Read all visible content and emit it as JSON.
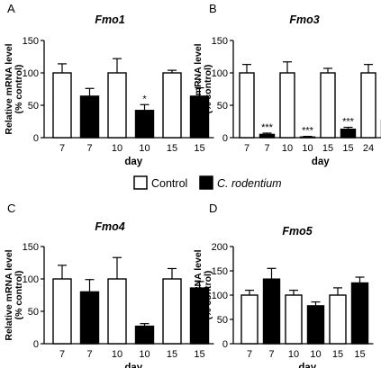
{
  "legend": {
    "control": "Control",
    "infected": "C. rodentium"
  },
  "chart_data": [
    {
      "panel": "A",
      "type": "bar",
      "title": "Fmo1",
      "xlabel": "day",
      "ylabel": "Relative mRNA level",
      "ylabel2": "(% control)",
      "ylim": [
        0,
        150
      ],
      "yticks": [
        0,
        50,
        100,
        150
      ],
      "grid": false,
      "categories": [
        "7",
        "7",
        "10",
        "10",
        "15",
        "15"
      ],
      "groups": [
        "Control",
        "C. rodentium",
        "Control",
        "C. rodentium",
        "Control",
        "C. rodentium"
      ],
      "values": [
        100,
        64,
        100,
        42,
        100,
        64
      ],
      "errors": [
        14,
        12,
        22,
        9,
        4,
        13
      ],
      "annotations": [
        "",
        "",
        "",
        "*",
        "",
        "*"
      ]
    },
    {
      "panel": "B",
      "type": "bar",
      "title": "Fmo3",
      "xlabel": "day",
      "ylabel": "Relative mRNA level",
      "ylabel2": "(% control)",
      "ylim": [
        0,
        150
      ],
      "yticks": [
        0,
        50,
        100,
        150
      ],
      "grid": false,
      "categories": [
        "7",
        "7",
        "10",
        "10",
        "15",
        "15",
        "24",
        "24"
      ],
      "groups": [
        "Control",
        "C. rodentium",
        "Control",
        "C. rodentium",
        "Control",
        "C. rodentium",
        "Control",
        "C. rodentium"
      ],
      "values": [
        100,
        5,
        100,
        1,
        100,
        13,
        100,
        27
      ],
      "errors": [
        13,
        2,
        17,
        1,
        7,
        3,
        13,
        7
      ],
      "annotations": [
        "",
        "***",
        "",
        "***",
        "",
        "***",
        "",
        "***"
      ]
    },
    {
      "panel": "C",
      "type": "bar",
      "title": "Fmo4",
      "xlabel": "day",
      "ylabel": "Relative mRNA level",
      "ylabel2": "(% control)",
      "ylim": [
        0,
        150
      ],
      "yticks": [
        0,
        50,
        100,
        150
      ],
      "grid": false,
      "categories": [
        "7",
        "7",
        "10",
        "10",
        "15",
        "15"
      ],
      "groups": [
        "Control",
        "C. rodentium",
        "Control",
        "C. rodentium",
        "Control",
        "C. rodentium"
      ],
      "values": [
        100,
        80,
        100,
        27,
        100,
        86
      ],
      "errors": [
        21,
        19,
        33,
        4,
        16,
        10
      ],
      "annotations": [
        "",
        "",
        "",
        "",
        "",
        ""
      ]
    },
    {
      "panel": "D",
      "type": "bar",
      "title": "Fmo5",
      "xlabel": "day",
      "ylabel": "Relative mRNA level",
      "ylabel2": "(% control)",
      "ylim": [
        0,
        200
      ],
      "yticks": [
        0,
        50,
        100,
        150,
        200
      ],
      "grid": false,
      "categories": [
        "7",
        "7",
        "10",
        "10",
        "15",
        "15"
      ],
      "groups": [
        "Control",
        "C. rodentium",
        "Control",
        "C. rodentium",
        "Control",
        "C. rodentium"
      ],
      "values": [
        100,
        133,
        100,
        78,
        100,
        125
      ],
      "errors": [
        10,
        22,
        10,
        8,
        15,
        12
      ],
      "annotations": [
        "",
        "",
        "",
        "",
        "",
        ""
      ]
    }
  ]
}
